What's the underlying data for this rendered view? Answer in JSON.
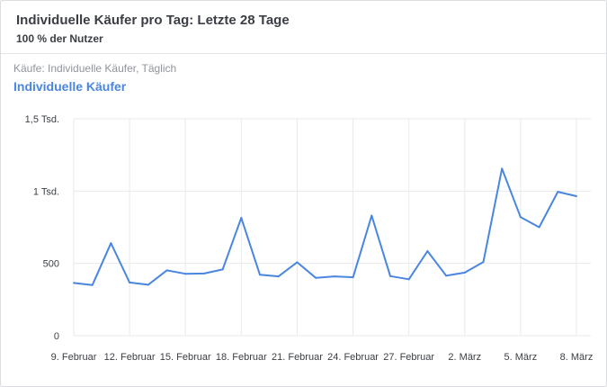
{
  "header": {
    "title": "Individuelle Käufer pro Tag: Letzte 28 Tage",
    "subtitle": "100 % der Nutzer"
  },
  "chart_data": {
    "type": "line",
    "metric_label": "Käufe: Individuelle Käufer, Täglich",
    "series_label": "Individuelle Käufer",
    "x": [
      "9. Februar",
      "10. Februar",
      "11. Februar",
      "12. Februar",
      "13. Februar",
      "14. Februar",
      "15. Februar",
      "16. Februar",
      "17. Februar",
      "18. Februar",
      "19. Februar",
      "20. Februar",
      "21. Februar",
      "22. Februar",
      "23. Februar",
      "24. Februar",
      "25. Februar",
      "26. Februar",
      "27. Februar",
      "28. Februar",
      "1. März",
      "2. März",
      "3. März",
      "4. März",
      "5. März",
      "6. März",
      "7. März",
      "8. März"
    ],
    "series": [
      {
        "color": "#4a86e0",
        "values": [
          365,
          350,
          640,
          368,
          352,
          452,
          428,
          430,
          458,
          815,
          422,
          410,
          508,
          400,
          410,
          404,
          830,
          412,
          390,
          585,
          415,
          436,
          510,
          1155,
          820,
          750,
          995,
          965
        ]
      }
    ],
    "xticks": [
      "9. Februar",
      "12. Februar",
      "15. Februar",
      "18. Februar",
      "21. Februar",
      "24. Februar",
      "27. Februar",
      "2. März",
      "5. März",
      "8. März"
    ],
    "yticks": [
      "0",
      "500",
      "1 Tsd.",
      "1,5 Tsd."
    ],
    "ylim": [
      0,
      1500
    ],
    "grid": true
  }
}
